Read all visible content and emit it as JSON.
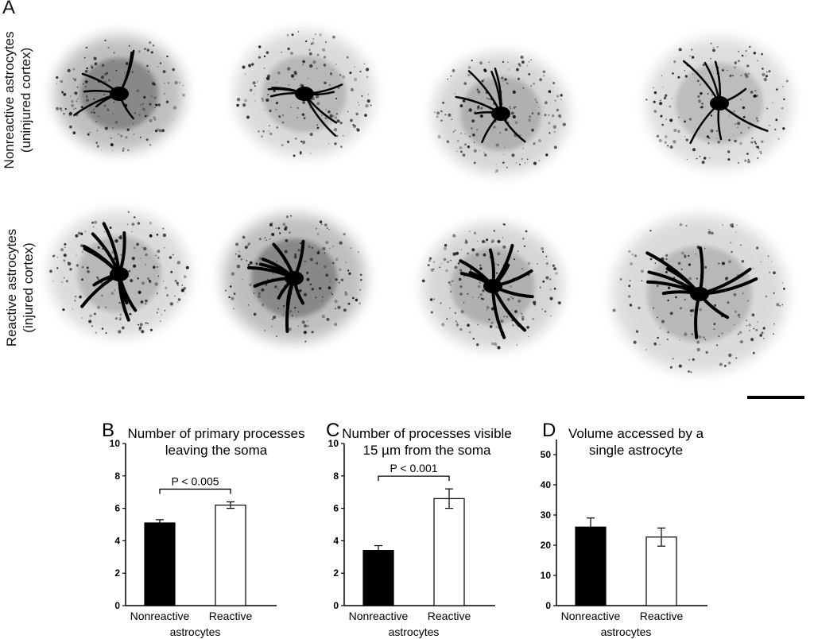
{
  "panel_a": {
    "letter": "A",
    "row_labels": [
      {
        "line1": "Nonreactive astrocytes",
        "line2": "(uninjured cortex)"
      },
      {
        "line1": "Reactive astrocytes",
        "line2": "(injured cortex)"
      }
    ],
    "image_description_icons": [
      "astrocyte-micrograph-icon"
    ]
  },
  "colors": {
    "bar_nonreactive": "#000000",
    "bar_reactive": "#ffffff",
    "stroke": "#000000"
  },
  "chart_data": [
    {
      "letter": "B",
      "type": "bar",
      "title_line1": "Number of primary processes",
      "title_line2": "leaving the soma",
      "categories": [
        "Nonreactive",
        "Reactive"
      ],
      "xlabel": "astrocytes",
      "values": [
        5.1,
        6.2
      ],
      "errors": [
        0.2,
        0.2
      ],
      "ylim": [
        0,
        10
      ],
      "yticks": [
        "0",
        "2",
        "4",
        "6",
        "8",
        "10"
      ],
      "annotation": "P < 0.005"
    },
    {
      "letter": "C",
      "type": "bar",
      "title_line1": "Number of  processes visible",
      "title_line2": "15 µm from the soma",
      "categories": [
        "Nonreactive",
        "Reactive"
      ],
      "xlabel": "astrocytes",
      "values": [
        3.4,
        6.6
      ],
      "errors": [
        0.3,
        0.6
      ],
      "ylim": [
        0,
        10
      ],
      "yticks": [
        "0",
        "2",
        "4",
        "6",
        "8",
        "10"
      ],
      "annotation": "P < 0.001"
    },
    {
      "letter": "D",
      "type": "bar",
      "title_line1": "Volume accessed by a",
      "title_line2": "single astrocyte",
      "categories": [
        "Nonreactive",
        "Reactive"
      ],
      "xlabel": "astrocytes",
      "values": [
        26,
        22.7
      ],
      "errors": [
        3,
        3
      ],
      "ylim": [
        0,
        55
      ],
      "yticks": [
        "0",
        "10",
        "20",
        "30",
        "40",
        "50"
      ],
      "annotation": ""
    }
  ]
}
